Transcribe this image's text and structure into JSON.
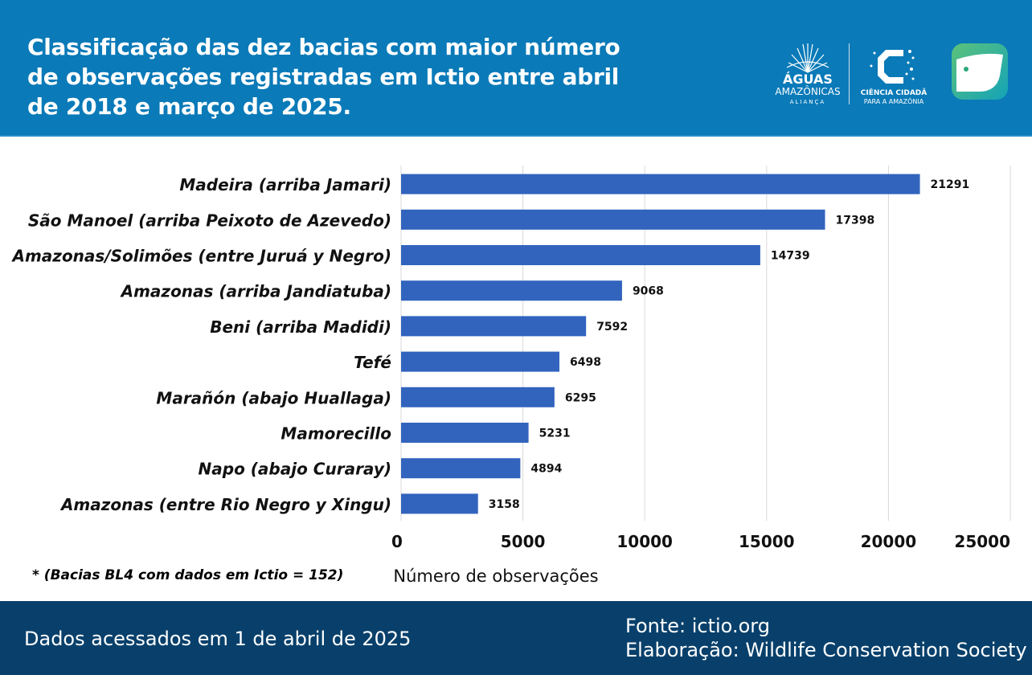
{
  "header": {
    "title": "Classificação das dez bacias com maior número de observações registradas em Ictio entre abril de 2018 e março de 2025.",
    "logo1": {
      "line1": "ÁGUAS",
      "line2": "AMAZÔNICAS",
      "line3": "ALIANÇA"
    },
    "logo2": {
      "line1": "CIÊNCIA CIDADÃ",
      "line2": "PARA A AMAZÔNIA"
    },
    "logo3_icon": "fish-app-icon",
    "accent_color": "#0a7ab8"
  },
  "chart_data": {
    "type": "bar",
    "orientation": "horizontal",
    "categories": [
      "Madeira (arriba Jamari)",
      "São Manoel (arriba Peixoto de Azevedo)",
      "Amazonas/Solimões (entre Juruá y Negro)",
      "Amazonas (arriba Jandiatuba)",
      "Beni (arriba Madidi)",
      "Tefé",
      "Marañón (abajo Huallaga)",
      "Mamorecillo",
      "Napo (abajo Curaray)",
      "Amazonas (entre Rio Negro y Xingu)"
    ],
    "values": [
      21291,
      17398,
      14739,
      9068,
      7592,
      6498,
      6295,
      5231,
      4894,
      3158
    ],
    "xlabel": "Número de observações",
    "xlim": [
      0,
      25000
    ],
    "xticks": [
      0,
      5000,
      10000,
      15000,
      20000,
      25000
    ],
    "bar_color": "#3264be",
    "grid": true
  },
  "footnote": "* (Bacias BL4 com dados em Ictio = 152)",
  "footer": {
    "accessed": "Dados acessados em 1 de abril de 2025",
    "source": "Fonte: ictio.org",
    "credit": "Elaboração: Wildlife Conservation Society"
  }
}
